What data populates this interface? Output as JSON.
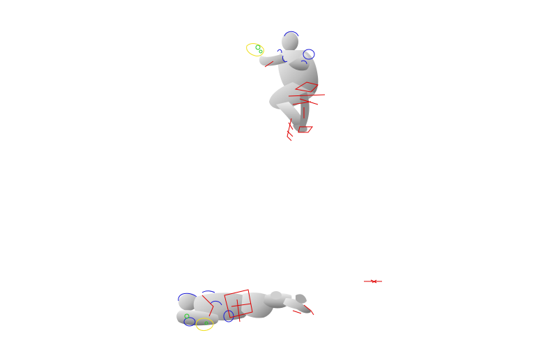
{
  "viewport": {
    "background": "#ffffff"
  },
  "colors": {
    "mesh_light": "#e4e4e4",
    "mesh_mid": "#b8b8b8",
    "mesh_dark": "#6e6e6e",
    "control_red": "#e00000",
    "control_blue": "#1a1ad6",
    "control_yellow": "#f0e020",
    "control_green": "#22cc22"
  },
  "figures": [
    {
      "name": "crouching-figure",
      "pose": "crouching"
    },
    {
      "name": "lying-figure",
      "pose": "lying"
    }
  ]
}
